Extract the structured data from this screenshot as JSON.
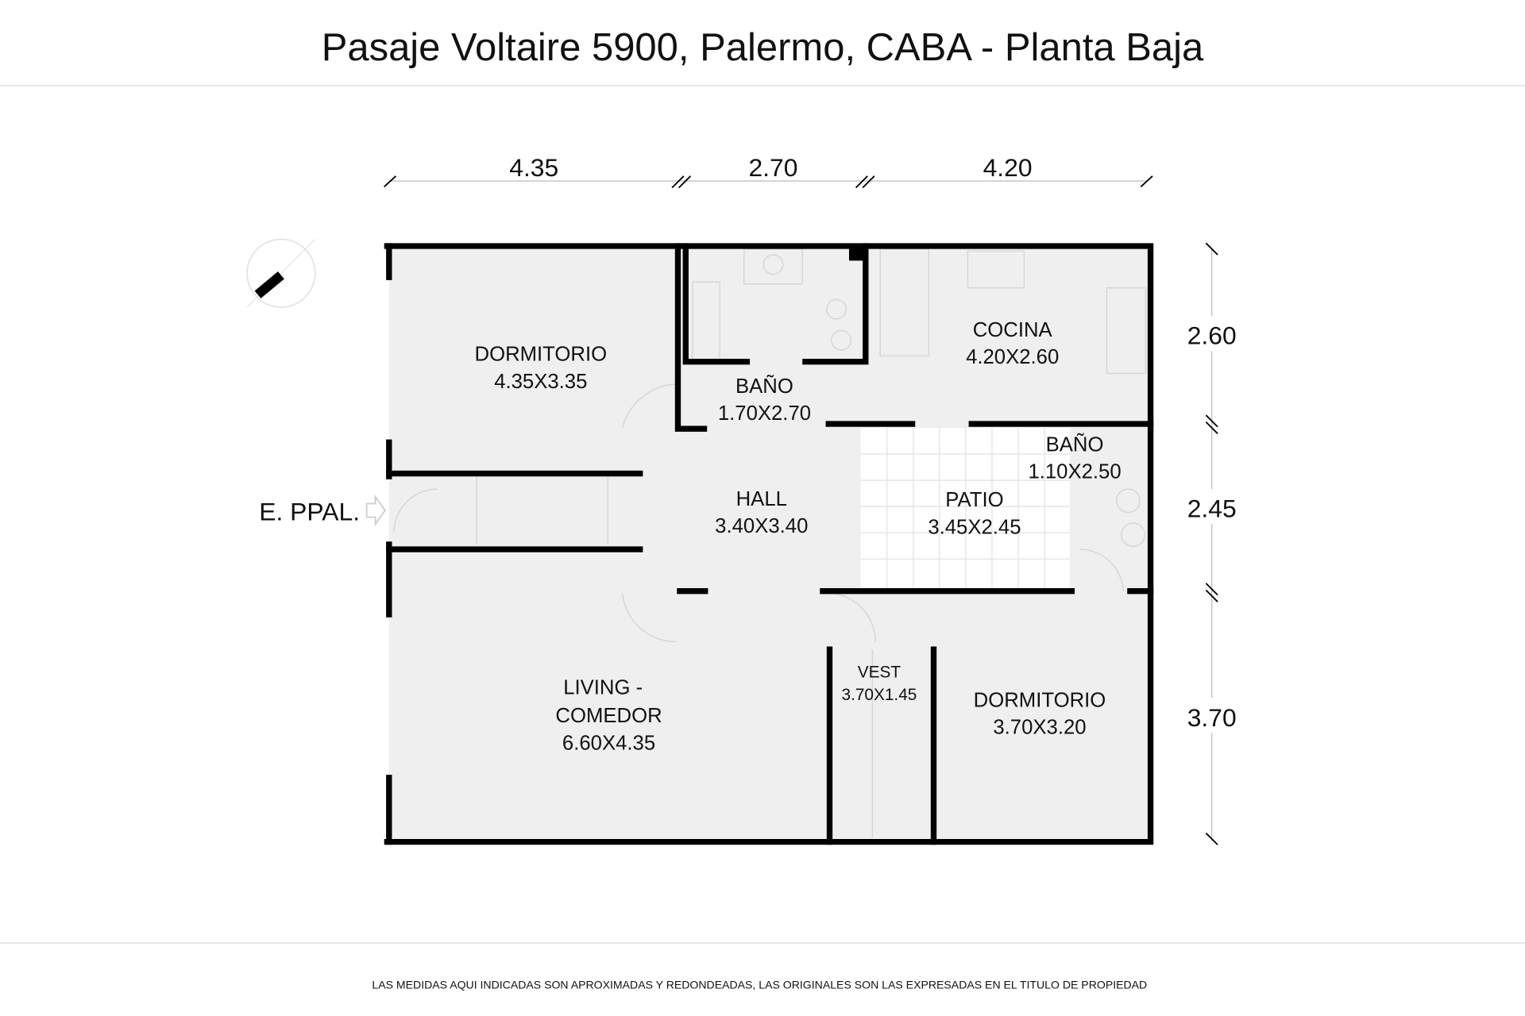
{
  "title": "Pasaje Voltaire 5900, Palermo, CABA - Planta Baja",
  "footer": "LAS MEDIDAS AQUI INDICADAS SON APROXIMADAS Y REDONDEADAS, LAS ORIGINALES SON LAS EXPRESADAS EN EL TITULO DE PROPIEDAD",
  "entrance_label": "E. PPAL.",
  "dimensions": {
    "top": [
      "4.35",
      "2.70",
      "4.20"
    ],
    "right": [
      "2.60",
      "2.45",
      "3.70"
    ]
  },
  "rooms": [
    {
      "name": "DORMITORIO",
      "size": "4.35X3.35"
    },
    {
      "name": "BAÑO",
      "size": "1.70X2.70"
    },
    {
      "name": "COCINA",
      "size": "4.20X2.60"
    },
    {
      "name": "BAÑO",
      "size": "1.10X2.50"
    },
    {
      "name": "HALL",
      "size": "3.40X3.40"
    },
    {
      "name": "PATIO",
      "size": "3.45X2.45"
    },
    {
      "name": "LIVING -",
      "name2": "COMEDOR",
      "size": "6.60X4.35"
    },
    {
      "name": "VEST",
      "size": "3.70X1.45"
    },
    {
      "name": "DORMITORIO",
      "size": "3.70X3.20"
    }
  ],
  "icons": {
    "compass": "north-arrow-icon",
    "entrance": "entrance-arrow-icon"
  },
  "colors": {
    "floor": "#efefef",
    "wall": "#000000",
    "patio": "#ffffff"
  }
}
